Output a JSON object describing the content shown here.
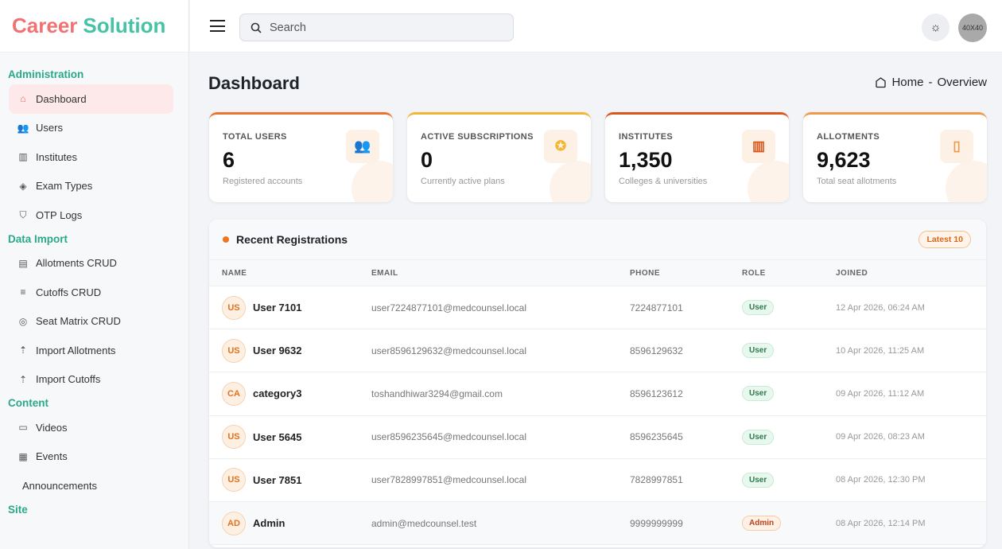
{
  "brand": {
    "part1": "Career",
    "part2": "Solution"
  },
  "sidebar": {
    "sections": [
      {
        "title": "Administration",
        "items": [
          {
            "label": "Dashboard",
            "icon": "home-icon",
            "active": true
          },
          {
            "label": "Users",
            "icon": "users-icon"
          },
          {
            "label": "Institutes",
            "icon": "building-icon"
          },
          {
            "label": "Exam Types",
            "icon": "tag-icon"
          },
          {
            "label": "OTP Logs",
            "icon": "shield-icon"
          }
        ]
      },
      {
        "title": "Data Import",
        "items": [
          {
            "label": "Allotments CRUD",
            "icon": "clipboard-icon"
          },
          {
            "label": "Cutoffs CRUD",
            "icon": "list-icon"
          },
          {
            "label": "Seat Matrix CRUD",
            "icon": "layers-icon"
          },
          {
            "label": "Import Allotments",
            "icon": "upload-icon"
          },
          {
            "label": "Import Cutoffs",
            "icon": "upload-icon"
          }
        ]
      },
      {
        "title": "Content",
        "items": [
          {
            "label": "Videos",
            "icon": "video-icon"
          },
          {
            "label": "Events",
            "icon": "calendar-icon"
          },
          {
            "label": "Announcements",
            "icon": ""
          }
        ]
      },
      {
        "title": "Site",
        "items": []
      }
    ]
  },
  "header": {
    "search_placeholder": "Search",
    "avatar_text": "40X40"
  },
  "page": {
    "title": "Dashboard",
    "breadcrumb": {
      "home": "Home",
      "sep": "-",
      "current": "Overview"
    }
  },
  "stats": [
    {
      "label": "TOTAL USERS",
      "value": "6",
      "sub": "Registered accounts",
      "color": "#e8762c",
      "icon": "users-icon"
    },
    {
      "label": "ACTIVE SUBSCRIPTIONS",
      "value": "0",
      "sub": "Currently active plans",
      "color": "#f2b632",
      "icon": "award-icon"
    },
    {
      "label": "INSTITUTES",
      "value": "1,350",
      "sub": "Colleges & universities",
      "color": "#d9561c",
      "icon": "building-icon"
    },
    {
      "label": "ALLOTMENTS",
      "value": "9,623",
      "sub": "Total seat allotments",
      "color": "#ef9a4a",
      "icon": "receipt-icon"
    }
  ],
  "recent": {
    "title": "Recent Registrations",
    "badge": "Latest 10",
    "columns": [
      "NAME",
      "EMAIL",
      "PHONE",
      "ROLE",
      "JOINED"
    ],
    "rows": [
      {
        "initials": "US",
        "name": "User 7101",
        "email": "user7224877101@medcounsel.local",
        "phone": "7224877101",
        "role": "User",
        "joined": "12 Apr 2026, 06:24 AM"
      },
      {
        "initials": "US",
        "name": "User 9632",
        "email": "user8596129632@medcounsel.local",
        "phone": "8596129632",
        "role": "User",
        "joined": "10 Apr 2026, 11:25 AM"
      },
      {
        "initials": "CA",
        "name": "category3",
        "email": "toshandhiwar3294@gmail.com",
        "phone": "8596123612",
        "role": "User",
        "joined": "09 Apr 2026, 11:12 AM"
      },
      {
        "initials": "US",
        "name": "User 5645",
        "email": "user8596235645@medcounsel.local",
        "phone": "8596235645",
        "role": "User",
        "joined": "09 Apr 2026, 08:23 AM"
      },
      {
        "initials": "US",
        "name": "User 7851",
        "email": "user7828997851@medcounsel.local",
        "phone": "7828997851",
        "role": "User",
        "joined": "08 Apr 2026, 12:30 PM"
      },
      {
        "initials": "AD",
        "name": "Admin",
        "email": "admin@medcounsel.test",
        "phone": "9999999999",
        "role": "Admin",
        "joined": "08 Apr 2026, 12:14 PM"
      }
    ]
  }
}
